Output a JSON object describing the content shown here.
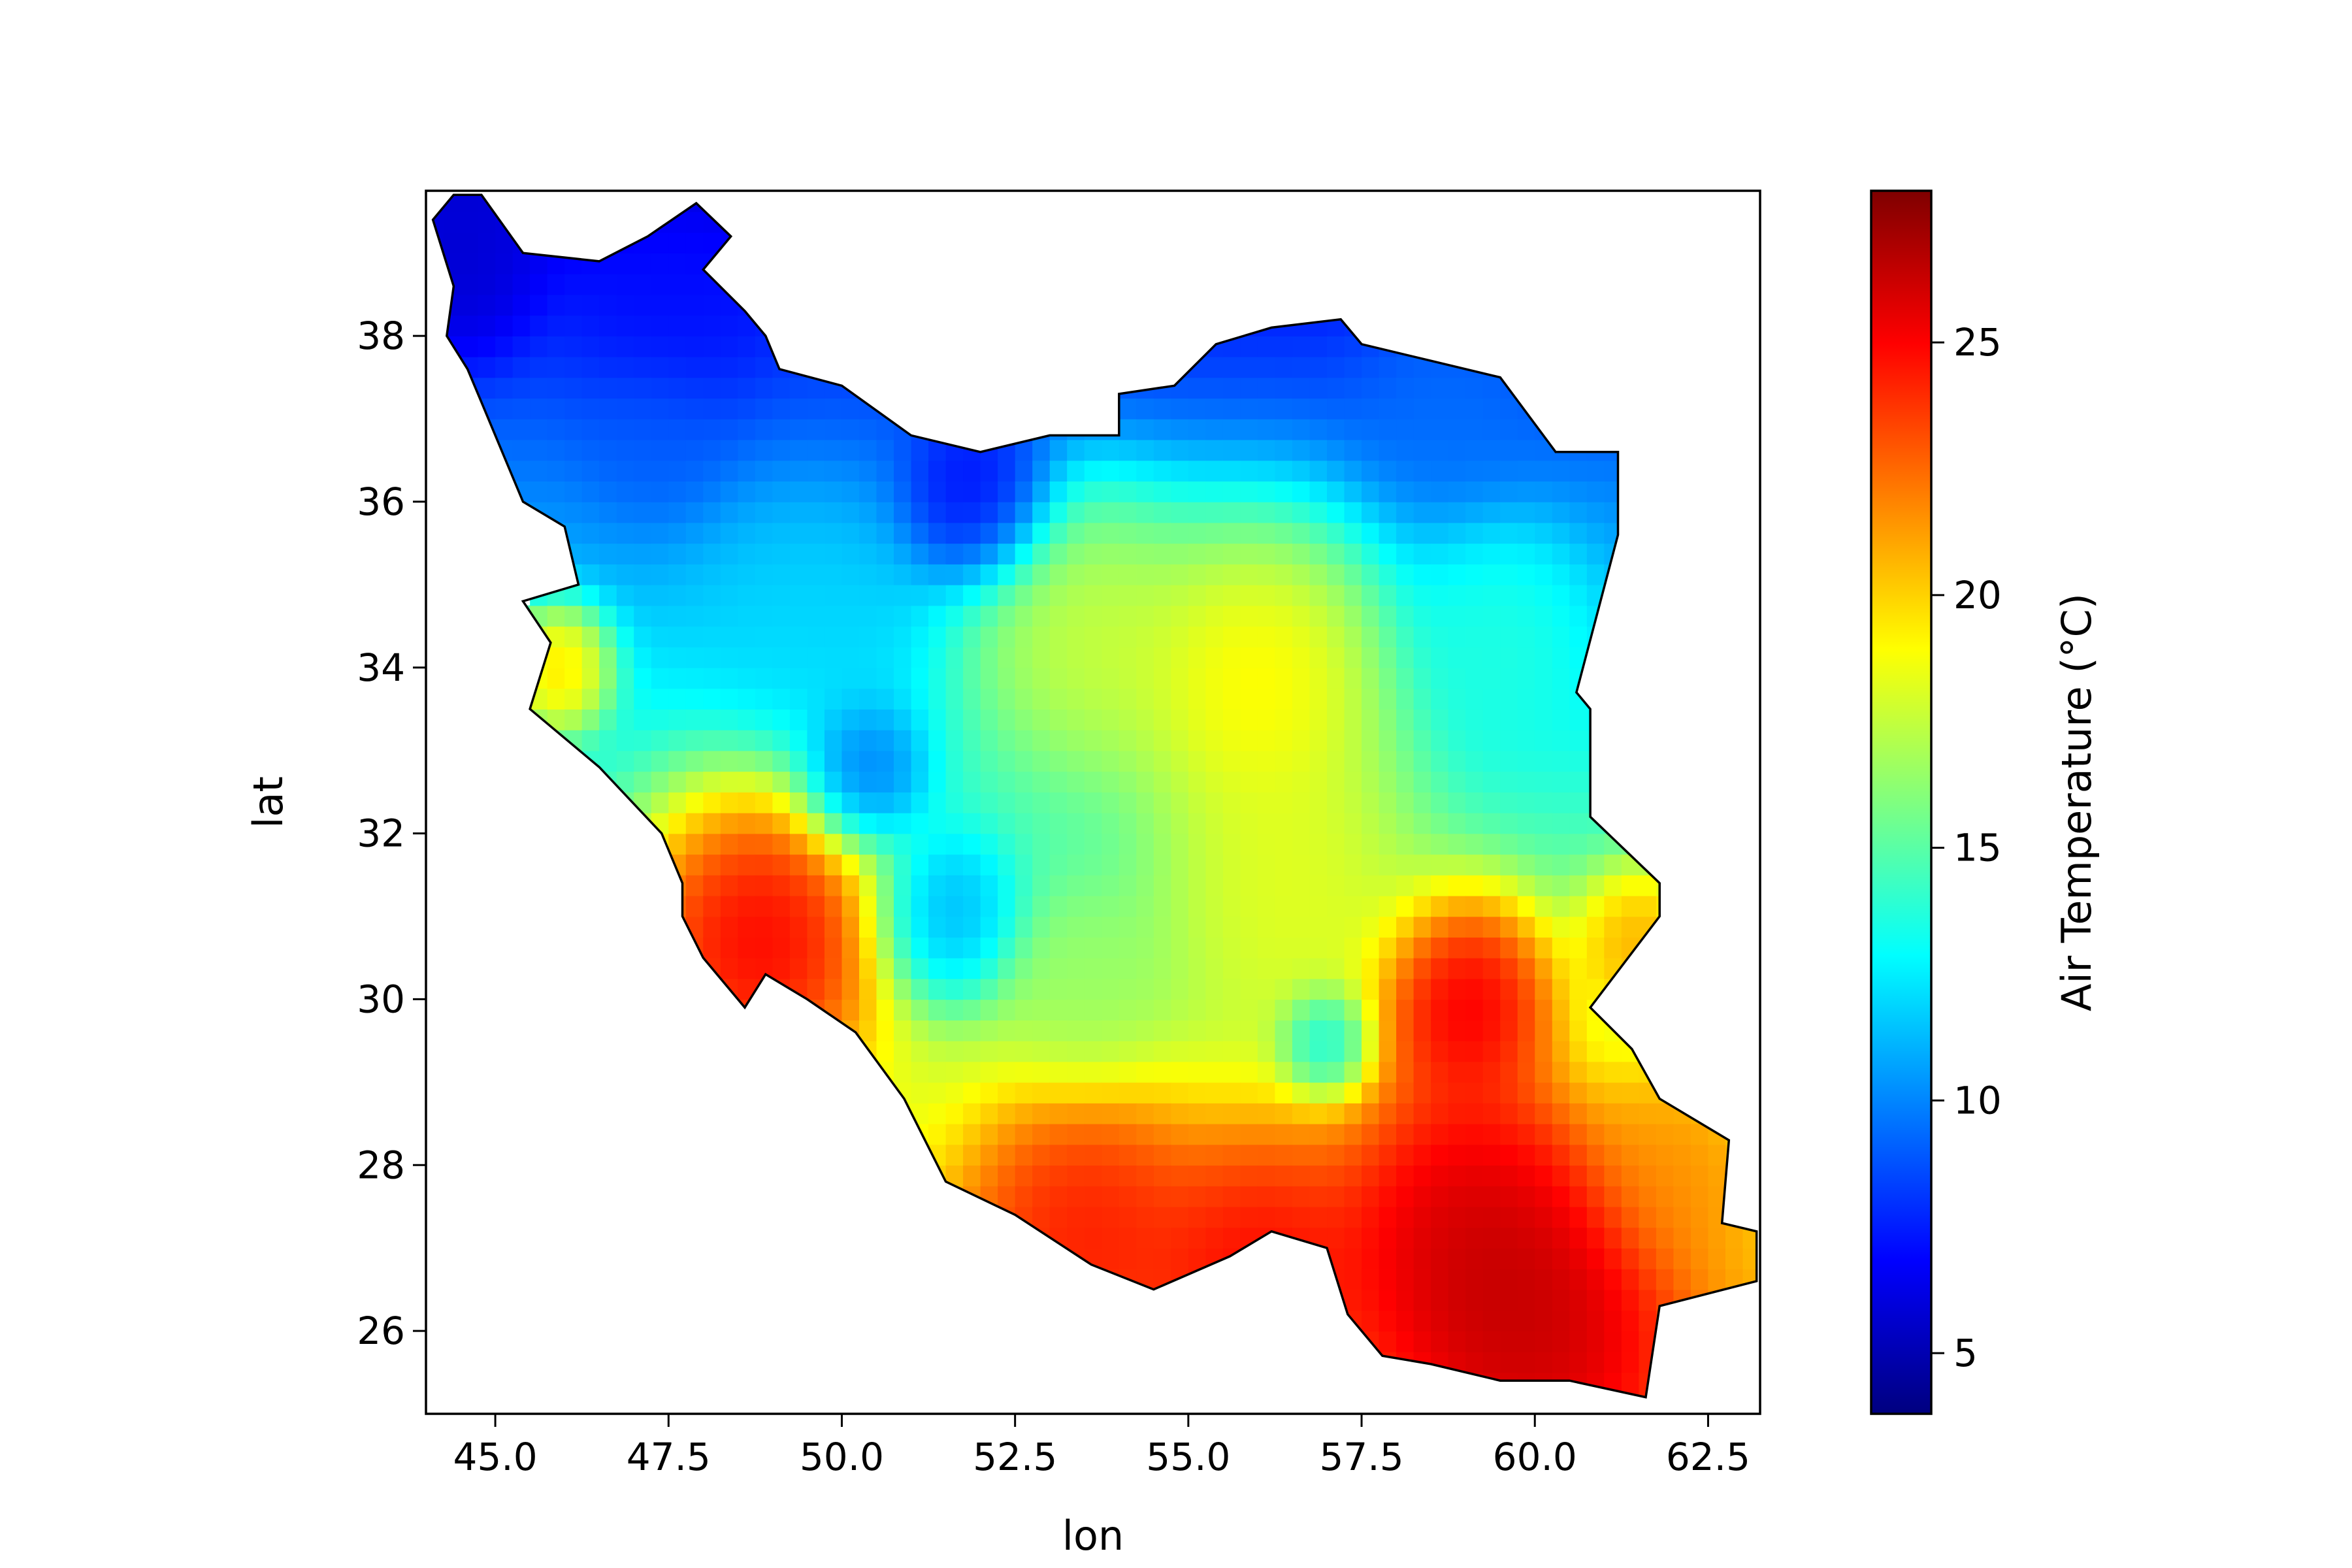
{
  "chart_data": {
    "type": "heatmap",
    "title": "",
    "xlabel": "lon",
    "ylabel": "lat",
    "xlim": [
      44.0,
      63.25
    ],
    "ylim": [
      25.0,
      39.75
    ],
    "x_ticks": [
      45.0,
      47.5,
      50.0,
      52.5,
      55.0,
      57.5,
      60.0,
      62.5
    ],
    "x_tick_labels": [
      "45.0",
      "47.5",
      "50.0",
      "52.5",
      "55.0",
      "57.5",
      "60.0",
      "62.5"
    ],
    "y_ticks": [
      26,
      28,
      30,
      32,
      34,
      36,
      38
    ],
    "y_tick_labels": [
      "26",
      "28",
      "30",
      "32",
      "34",
      "36",
      "38"
    ],
    "grid": false,
    "colormap": "jet",
    "colorbar": {
      "label": "Air Temperature (°C)",
      "range": [
        3.8,
        28.0
      ],
      "ticks": [
        5,
        10,
        15,
        20,
        25
      ],
      "tick_labels": [
        "5",
        "10",
        "15",
        "20",
        "25"
      ]
    },
    "region_outline": [
      [
        44.1,
        39.4
      ],
      [
        44.4,
        39.7
      ],
      [
        44.8,
        39.7
      ],
      [
        45.4,
        39.0
      ],
      [
        46.5,
        38.9
      ],
      [
        47.2,
        39.2
      ],
      [
        47.9,
        39.6
      ],
      [
        48.4,
        39.2
      ],
      [
        48.0,
        38.8
      ],
      [
        48.6,
        38.3
      ],
      [
        48.9,
        38.0
      ],
      [
        49.1,
        37.6
      ],
      [
        50.0,
        37.4
      ],
      [
        51.0,
        36.8
      ],
      [
        52.0,
        36.6
      ],
      [
        53.0,
        36.8
      ],
      [
        54.0,
        36.8
      ],
      [
        54.0,
        37.3
      ],
      [
        54.8,
        37.4
      ],
      [
        55.4,
        37.9
      ],
      [
        56.2,
        38.1
      ],
      [
        57.2,
        38.2
      ],
      [
        57.5,
        37.9
      ],
      [
        58.5,
        37.7
      ],
      [
        59.5,
        37.5
      ],
      [
        60.3,
        36.6
      ],
      [
        61.2,
        36.6
      ],
      [
        61.2,
        35.6
      ],
      [
        60.6,
        33.7
      ],
      [
        60.8,
        33.5
      ],
      [
        60.8,
        32.2
      ],
      [
        61.8,
        31.4
      ],
      [
        61.8,
        31.0
      ],
      [
        60.8,
        29.9
      ],
      [
        61.4,
        29.4
      ],
      [
        61.8,
        28.8
      ],
      [
        62.8,
        28.3
      ],
      [
        62.7,
        27.3
      ],
      [
        63.2,
        27.2
      ],
      [
        63.2,
        26.6
      ],
      [
        61.8,
        26.3
      ],
      [
        61.6,
        25.2
      ],
      [
        60.5,
        25.4
      ],
      [
        59.5,
        25.4
      ],
      [
        58.5,
        25.6
      ],
      [
        57.8,
        25.7
      ],
      [
        57.3,
        26.2
      ],
      [
        57.0,
        27.0
      ],
      [
        56.2,
        27.2
      ],
      [
        55.6,
        26.9
      ],
      [
        54.5,
        26.5
      ],
      [
        53.6,
        26.8
      ],
      [
        52.5,
        27.4
      ],
      [
        51.5,
        27.8
      ],
      [
        50.9,
        28.8
      ],
      [
        50.2,
        29.6
      ],
      [
        49.5,
        30.0
      ],
      [
        48.9,
        30.3
      ],
      [
        48.6,
        29.9
      ],
      [
        48.0,
        30.5
      ],
      [
        47.7,
        31.0
      ],
      [
        47.7,
        31.4
      ],
      [
        47.4,
        32.0
      ],
      [
        46.5,
        32.8
      ],
      [
        45.5,
        33.5
      ],
      [
        45.8,
        34.3
      ],
      [
        45.4,
        34.8
      ],
      [
        46.2,
        35.0
      ],
      [
        46.0,
        35.7
      ],
      [
        45.4,
        36.0
      ],
      [
        44.8,
        37.2
      ],
      [
        44.6,
        37.6
      ],
      [
        44.3,
        38.0
      ],
      [
        44.4,
        38.6
      ],
      [
        44.1,
        39.4
      ]
    ],
    "temperature_hotspots": [
      {
        "lon": 48.8,
        "lat": 30.8,
        "value": 27.5,
        "radius_deg": 1.4
      },
      {
        "lon": 59.0,
        "lat": 30.0,
        "value": 27.5,
        "radius_deg": 1.0
      },
      {
        "lon": 59.0,
        "lat": 27.3,
        "value": 27.5,
        "radius_deg": 1.5
      },
      {
        "lon": 60.0,
        "lat": 26.2,
        "value": 27.5,
        "radius_deg": 1.5
      },
      {
        "lon": 56.0,
        "lat": 26.8,
        "value": 26.0,
        "radius_deg": 1.3
      },
      {
        "lon": 53.5,
        "lat": 27.3,
        "value": 25.5,
        "radius_deg": 1.3
      },
      {
        "lon": 62.0,
        "lat": 28.0,
        "value": 22.0,
        "radius_deg": 1.0
      },
      {
        "lon": 61.5,
        "lat": 30.7,
        "value": 22.0,
        "radius_deg": 0.7
      },
      {
        "lon": 45.9,
        "lat": 34.0,
        "value": 21.5,
        "radius_deg": 0.6
      },
      {
        "lon": 56.0,
        "lat": 34.0,
        "value": 21.0,
        "radius_deg": 1.5
      },
      {
        "lon": 53.5,
        "lat": 34.5,
        "value": 19.0,
        "radius_deg": 1.4
      },
      {
        "lon": 56.5,
        "lat": 31.5,
        "value": 19.0,
        "radius_deg": 1.4
      },
      {
        "lon": 44.5,
        "lat": 38.7,
        "value": 5.5,
        "radius_deg": 0.8
      },
      {
        "lon": 47.5,
        "lat": 38.2,
        "value": 7.0,
        "radius_deg": 1.0
      },
      {
        "lon": 52.0,
        "lat": 36.0,
        "value": 6.0,
        "radius_deg": 0.8
      },
      {
        "lon": 47.3,
        "lat": 36.8,
        "value": 9.0,
        "radius_deg": 0.8
      },
      {
        "lon": 50.3,
        "lat": 32.7,
        "value": 8.5,
        "radius_deg": 0.7
      },
      {
        "lon": 51.5,
        "lat": 31.0,
        "value": 10.0,
        "radius_deg": 0.8
      },
      {
        "lon": 58.8,
        "lat": 37.2,
        "value": 9.5,
        "radius_deg": 1.0
      },
      {
        "lon": 49.5,
        "lat": 34.5,
        "value": 12.0,
        "radius_deg": 1.2
      },
      {
        "lon": 57.0,
        "lat": 29.5,
        "value": 12.0,
        "radius_deg": 0.5
      },
      {
        "lon": 59.5,
        "lat": 34.5,
        "value": 14.0,
        "radius_deg": 1.0
      },
      {
        "lon": 53.5,
        "lat": 30.0,
        "value": 16.5,
        "radius_deg": 0.9
      }
    ]
  }
}
